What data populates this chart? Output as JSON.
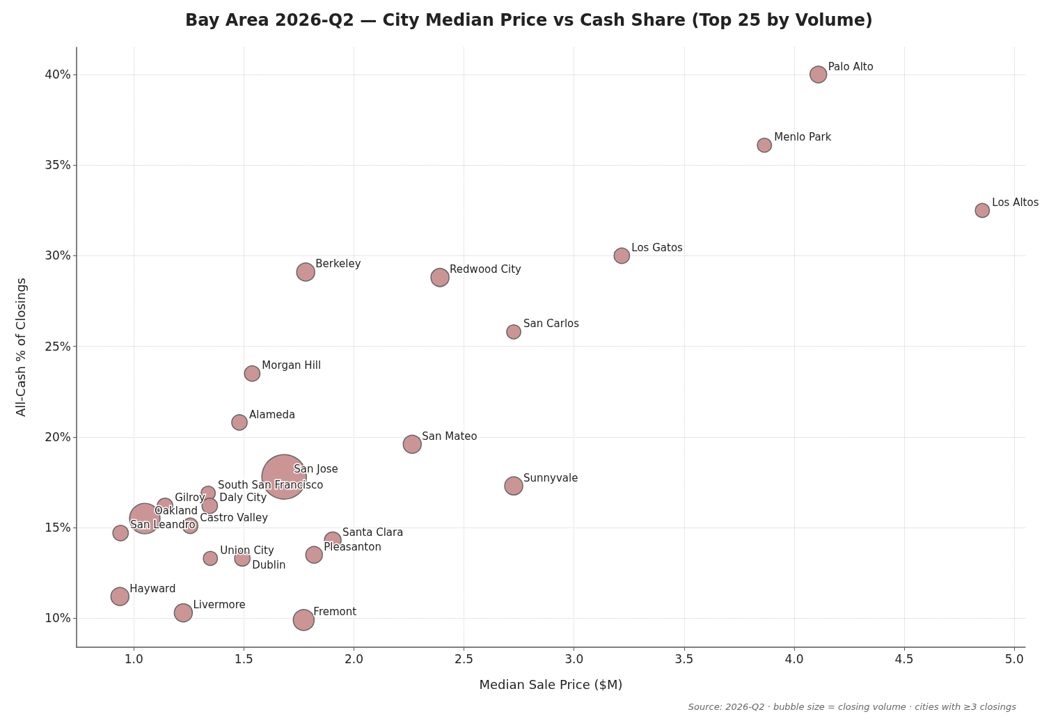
{
  "chart_data": {
    "type": "bubble",
    "title": "Bay Area 2026-Q2 — City Median Price vs Cash Share (Top 25 by Volume)",
    "xlabel": "Median Sale Price ($M)",
    "ylabel": "All-Cash % of Closings",
    "x": [
      4.11,
      3.865,
      4.855,
      3.217,
      1.781,
      2.391,
      2.726,
      1.538,
      1.48,
      2.265,
      1.683,
      2.726,
      1.338,
      1.345,
      1.142,
      1.05,
      1.256,
      0.94,
      1.904,
      1.819,
      1.348,
      1.493,
      0.937,
      1.225,
      1.772
    ],
    "series": [
      {
        "color": "#c98f8f",
        "values": [
          40.0,
          36.1,
          32.5,
          30.0,
          29.1,
          28.8,
          25.8,
          23.5,
          20.8,
          19.6,
          17.8,
          17.3,
          16.9,
          16.2,
          16.2,
          15.5,
          15.1,
          14.7,
          14.3,
          13.5,
          13.3,
          13.3,
          11.2,
          10.3,
          9.9
        ],
        "sizes": [
          0.14,
          0.1,
          0.1,
          0.12,
          0.165,
          0.165,
          0.1,
          0.12,
          0.12,
          0.165,
          1,
          0.165,
          0.1,
          0.12,
          0.12,
          0.47,
          0.12,
          0.12,
          0.14,
          0.14,
          0.1,
          0.12,
          0.165,
          0.165,
          0.22
        ]
      }
    ],
    "annotations": [
      {
        "text": "Palo Alto",
        "x": 4.11,
        "y": 40.0
      },
      {
        "text": "Menlo Park",
        "x": 3.865,
        "y": 36.1
      },
      {
        "text": "Los Altos",
        "x": 4.855,
        "y": 32.5
      },
      {
        "text": "Los Gatos",
        "x": 3.217,
        "y": 30.0
      },
      {
        "text": "Berkeley",
        "x": 1.781,
        "y": 29.1
      },
      {
        "text": "Redwood City",
        "x": 2.391,
        "y": 28.8
      },
      {
        "text": "San Carlos",
        "x": 2.726,
        "y": 25.8
      },
      {
        "text": "Morgan Hill",
        "x": 1.538,
        "y": 23.5
      },
      {
        "text": "Alameda",
        "x": 1.48,
        "y": 20.8
      },
      {
        "text": "San Mateo",
        "x": 2.265,
        "y": 19.6
      },
      {
        "text": "San Jose",
        "x": 1.683,
        "y": 17.8
      },
      {
        "text": "Sunnyvale",
        "x": 2.726,
        "y": 17.3
      },
      {
        "text": "South San Francisco",
        "x": 1.338,
        "y": 16.9
      },
      {
        "text": "Daly City",
        "x": 1.345,
        "y": 16.2
      },
      {
        "text": "Gilroy",
        "x": 1.142,
        "y": 16.2
      },
      {
        "text": "Oakland",
        "x": 1.05,
        "y": 15.5
      },
      {
        "text": "Castro Valley",
        "x": 1.256,
        "y": 15.1
      },
      {
        "text": "San Leandro",
        "x": 0.94,
        "y": 14.7
      },
      {
        "text": "Santa Clara",
        "x": 1.904,
        "y": 14.3
      },
      {
        "text": "Pleasanton",
        "x": 1.819,
        "y": 13.5
      },
      {
        "text": "Union City",
        "x": 1.348,
        "y": 13.3
      },
      {
        "text": "Dublin",
        "x": 1.493,
        "y": 13.3
      },
      {
        "text": "Hayward",
        "x": 0.937,
        "y": 11.2
      },
      {
        "text": "Livermore",
        "x": 1.225,
        "y": 10.3
      },
      {
        "text": "Fremont",
        "x": 1.772,
        "y": 9.9
      },
      "Source: 2026-Q2 · bubble size = closing volume · cities with ≥3 closings"
    ],
    "xlim": [
      0.74,
      5.05
    ],
    "xticks": [
      {
        "value": 1.0,
        "label": "1.0"
      },
      {
        "value": 1.5,
        "label": "1.5"
      },
      {
        "value": 2.0,
        "label": "2.0"
      },
      {
        "value": 2.5,
        "label": "2.5"
      },
      {
        "value": 3.0,
        "label": "3.0"
      },
      {
        "value": 3.5,
        "label": "3.5"
      },
      {
        "value": 4.0,
        "label": "4.0"
      },
      {
        "value": 4.5,
        "label": "4.5"
      },
      {
        "value": 5.0,
        "label": "5.0"
      }
    ],
    "ylim": [
      8.4,
      41.5
    ],
    "yticks": [
      {
        "value": 10,
        "label": "10%"
      },
      {
        "value": 15,
        "label": "15%"
      },
      {
        "value": 20,
        "label": "20%"
      },
      {
        "value": 25,
        "label": "25%"
      },
      {
        "value": 30,
        "label": "30%"
      },
      {
        "value": 35,
        "label": "35%"
      },
      {
        "value": 40,
        "label": "40%"
      }
    ],
    "grid": true,
    "marker": "circle"
  }
}
